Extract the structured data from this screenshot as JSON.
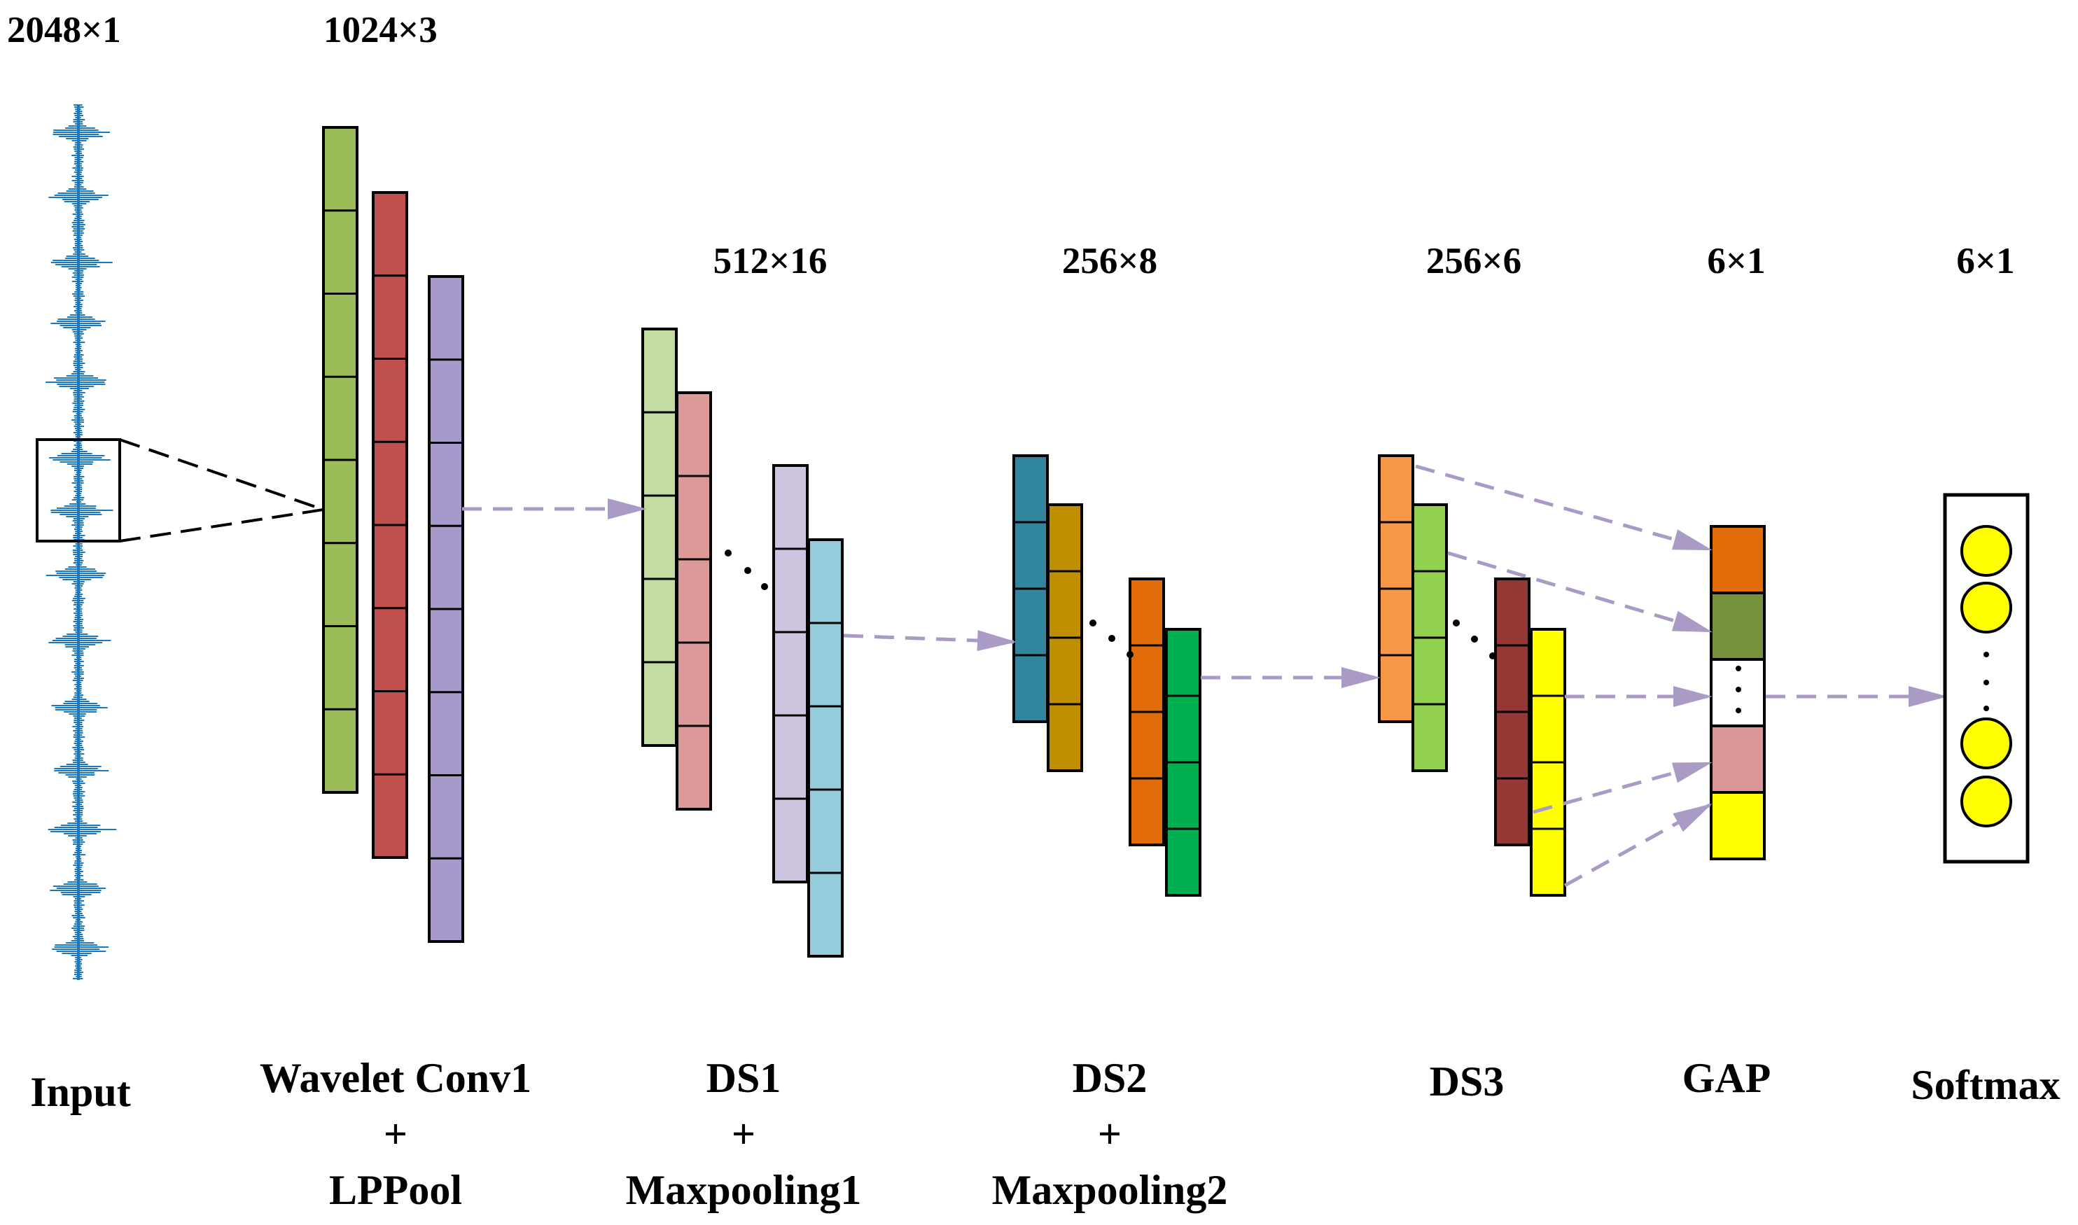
{
  "dimension_labels": {
    "input": "2048×1",
    "conv1": "1024×3",
    "ds1": "512×16",
    "ds2": "256×8",
    "ds3": "256×6",
    "gap": "6×1",
    "softmax": "6×1"
  },
  "stage_labels": {
    "input": "Input",
    "conv1_line1": "Wavelet Conv1",
    "conv1_line2": "+",
    "conv1_line3": "LPPool",
    "ds1_line1": "DS1",
    "ds1_line2": "+",
    "ds1_line3": "Maxpooling1",
    "ds2_line1": "DS2",
    "ds2_line2": "+",
    "ds2_line3": "Maxpooling2",
    "ds3": "DS3",
    "gap": "GAP",
    "softmax": "Softmax"
  },
  "colors": {
    "waveform": "#1a78c2",
    "arrow": "#a99bc6",
    "conv1": [
      "#9bbb59",
      "#c0504d",
      "#a799c9"
    ],
    "ds1": [
      "#c4dca4",
      "#db9a97",
      "#cdc4e0",
      "#94ccdc"
    ],
    "ds2": [
      "#31859c",
      "#bf8f00",
      "#e36c0a",
      "#00b050"
    ],
    "ds3": [
      "#f79646",
      "#92d050",
      "#953735",
      "#ffff00"
    ],
    "gap": [
      "#e36c0a",
      "#76923c",
      "#ffffff",
      "#d99694",
      "#ffff00"
    ],
    "softmax_node": "#ffff00"
  }
}
